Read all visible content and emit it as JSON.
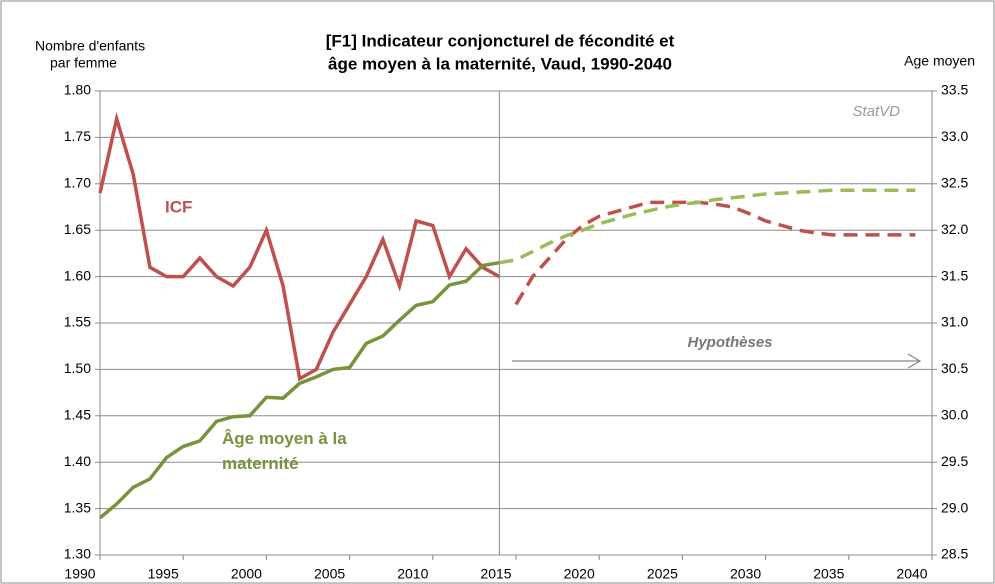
{
  "chart_data": {
    "type": "line",
    "title": [
      "[F1] Indicateur conjoncturel de fécondité et",
      "âge moyen à la maternité, Vaud, 1990-2040"
    ],
    "ylabel": [
      "Nombre d'enfants",
      "par femme"
    ],
    "y2label": "Age moyen",
    "annotations": {
      "source": "StatVD",
      "hypotheses": "Hypothèses"
    },
    "xlim": [
      1990,
      2040
    ],
    "xticks": [
      1990,
      1995,
      2000,
      2005,
      2010,
      2015,
      2020,
      2025,
      2030,
      2035,
      2040
    ],
    "ylim": [
      1.3,
      1.8
    ],
    "yticks": [
      {
        "value": 1.3,
        "label": "1.30"
      },
      1.35,
      {
        "value": 1.4,
        "label": "1.40"
      },
      1.45,
      {
        "value": 1.5,
        "label": "1.50"
      },
      1.55,
      {
        "value": 1.6,
        "label": "1.60"
      },
      1.65,
      {
        "value": 1.7,
        "label": "1.70"
      },
      1.75,
      {
        "value": 1.8,
        "label": "1.80"
      }
    ],
    "y2lim": [
      28.5,
      33.5
    ],
    "y2ticks": [
      28.5,
      {
        "value": 29,
        "label": "29.0"
      },
      29.5,
      {
        "value": 30,
        "label": "30.0"
      },
      30.5,
      {
        "value": 31,
        "label": "31.0"
      },
      31.5,
      {
        "value": 32,
        "label": "32.0"
      },
      32.5,
      {
        "value": 33,
        "label": "33.0"
      },
      33.5
    ],
    "grid": true,
    "vline": 2014,
    "series": [
      {
        "name": "ICF",
        "color": "#c0504d",
        "dashed": false,
        "x": [
          1990,
          1991,
          1992,
          1993,
          1994,
          1995,
          1996,
          1997,
          1998,
          1999,
          2000,
          2001,
          2002,
          2003,
          2004,
          2005,
          2006,
          2007,
          2008,
          2009,
          2010,
          2011,
          2012,
          2013,
          2014
        ],
        "values": [
          1.69,
          1.77,
          1.71,
          1.61,
          1.6,
          1.6,
          1.62,
          1.6,
          1.59,
          1.61,
          1.65,
          1.59,
          1.49,
          1.5,
          1.54,
          1.57,
          1.6,
          1.64,
          1.59,
          1.66,
          1.655,
          1.6,
          1.63,
          1.61,
          1.6
        ]
      },
      {
        "name": "Âge moyen à la maternité",
        "color": "#77933c",
        "dashed": false,
        "axis": "y2",
        "x": [
          1990,
          1991,
          1992,
          1993,
          1994,
          1995,
          1996,
          1997,
          1998,
          1999,
          2000,
          2001,
          2002,
          2003,
          2004,
          2005,
          2006,
          2007,
          2008,
          2009,
          2010,
          2011,
          2012,
          2013,
          2014
        ],
        "values": [
          28.9,
          29.05,
          29.23,
          29.32,
          29.55,
          29.67,
          29.73,
          29.94,
          29.99,
          30.0,
          30.2,
          30.19,
          30.35,
          30.42,
          30.5,
          30.52,
          30.78,
          30.86,
          31.03,
          31.19,
          31.23,
          31.41,
          31.45,
          31.62,
          31.65
        ]
      },
      {
        "color": "#c0504d",
        "dashed": true,
        "x": [
          2015,
          2016,
          2017,
          2018,
          2019,
          2020,
          2021,
          2022,
          2023,
          2024,
          2025,
          2026,
          2027,
          2028,
          2029,
          2030,
          2031,
          2032,
          2033,
          2034,
          2035,
          2036,
          2037,
          2038,
          2039
        ],
        "values": [
          1.57,
          1.6,
          1.62,
          1.64,
          1.655,
          1.665,
          1.67,
          1.675,
          1.68,
          1.68,
          1.68,
          1.68,
          1.678,
          1.675,
          1.668,
          1.66,
          1.655,
          1.65,
          1.647,
          1.645,
          1.645,
          1.645,
          1.645,
          1.645,
          1.645
        ]
      },
      {
        "color": "#9bbb59",
        "dashed": true,
        "axis": "y2",
        "x": [
          2014,
          2015,
          2016,
          2017,
          2018,
          2019,
          2020,
          2021,
          2022,
          2023,
          2024,
          2025,
          2026,
          2027,
          2028,
          2029,
          2030,
          2031,
          2032,
          2033,
          2034,
          2035,
          2036,
          2037,
          2038,
          2039
        ],
        "values": [
          31.65,
          31.68,
          31.77,
          31.86,
          31.94,
          32.0,
          32.07,
          32.12,
          32.17,
          32.21,
          32.25,
          32.28,
          32.3,
          32.33,
          32.35,
          32.37,
          32.39,
          32.4,
          32.41,
          32.42,
          32.43,
          32.43,
          32.43,
          32.43,
          32.43,
          32.43
        ]
      }
    ]
  }
}
